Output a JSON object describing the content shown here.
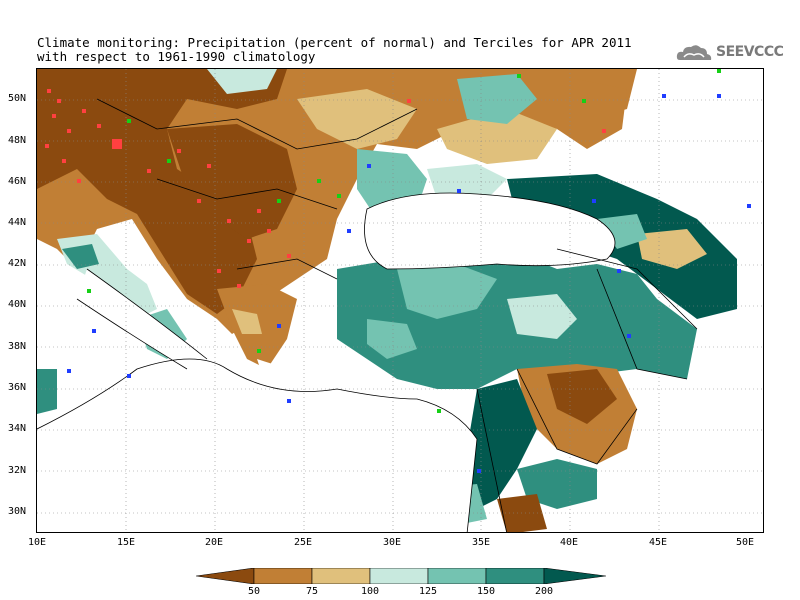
{
  "title": {
    "line1": "Climate monitoring: Precipitation (percent of normal) and Terciles for APR 2011",
    "line2": "with respect to 1961-1990 climatology"
  },
  "logo": {
    "text": "SEEVCCC",
    "icon": "cloud-icon"
  },
  "axes": {
    "lon_labels": [
      "10E",
      "15E",
      "20E",
      "25E",
      "30E",
      "35E",
      "40E",
      "45E",
      "50E"
    ],
    "lat_labels": [
      "50N",
      "48N",
      "46N",
      "44N",
      "42N",
      "40N",
      "38N",
      "36N",
      "34N",
      "32N",
      "30N"
    ]
  },
  "colorbar": {
    "breaks": [
      "50",
      "75",
      "100",
      "125",
      "150",
      "200"
    ],
    "colors": [
      "#8b4a0f",
      "#c17f35",
      "#e0c07c",
      "#c8e9de",
      "#74c3b1",
      "#2f8f7f",
      "#02594f"
    ]
  },
  "colors": {
    "below_tercile_marker": "#ff4040",
    "near_normal_marker": "#16d016",
    "above_tercile_marker": "#1f3dff",
    "land_outline": "#000000",
    "grid": "#888888"
  }
}
